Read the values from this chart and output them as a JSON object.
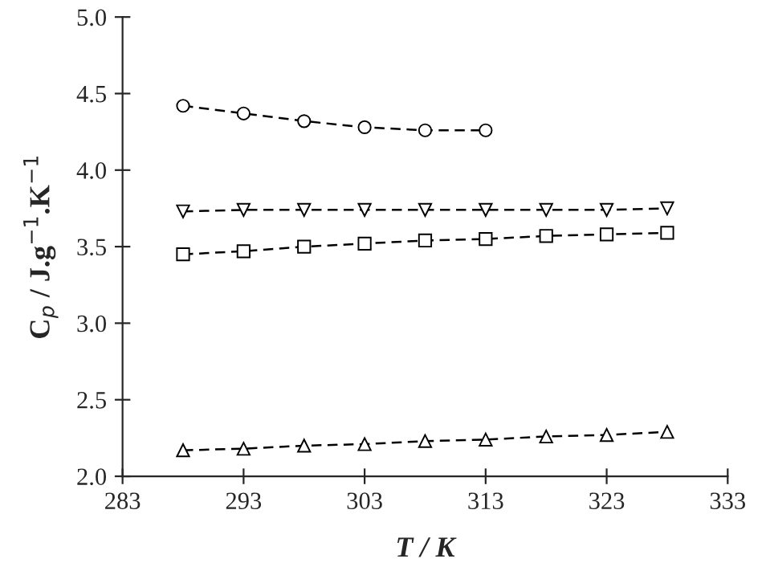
{
  "chart_data": {
    "type": "line",
    "xlabel": "T / K",
    "ylabel": "C$_{p}$ / J.g$^{−1}$.K$^{−1}$",
    "x": [
      288,
      293,
      298,
      303,
      308,
      313,
      318,
      323,
      328
    ],
    "xlim": [
      283,
      333
    ],
    "xticks": [
      283,
      293,
      303,
      313,
      323,
      333
    ],
    "ylim": [
      2.0,
      5.0
    ],
    "yticks": [
      {
        "value": 2.0,
        "label": "2.0"
      },
      {
        "value": 2.5,
        "label": "2.5"
      },
      {
        "value": 3.0,
        "label": "3.0"
      },
      {
        "value": 3.5,
        "label": "3.5"
      },
      {
        "value": 4.0,
        "label": "4.0"
      },
      {
        "value": 4.5,
        "label": "4.5"
      },
      {
        "value": 5.0,
        "label": "5.0"
      }
    ],
    "grid": false,
    "legend": false,
    "line_style": "dashed",
    "series": [
      {
        "color": "#000000",
        "marker": "circle",
        "x": [
          288,
          293,
          298,
          303,
          308,
          313
        ],
        "values": [
          4.42,
          4.37,
          4.32,
          4.28,
          4.26,
          4.26
        ]
      },
      {
        "color": "#000000",
        "marker": "triangle_down",
        "values": [
          3.73,
          3.74,
          3.74,
          3.74,
          3.74,
          3.74,
          3.74,
          3.74,
          3.75
        ]
      },
      {
        "color": "#000000",
        "marker": "square",
        "values": [
          3.45,
          3.47,
          3.5,
          3.52,
          3.54,
          3.55,
          3.57,
          3.58,
          3.59
        ]
      },
      {
        "color": "#000000",
        "marker": "triangle",
        "values": [
          2.17,
          2.18,
          2.2,
          2.21,
          2.23,
          2.24,
          2.26,
          2.27,
          2.29
        ]
      }
    ]
  }
}
